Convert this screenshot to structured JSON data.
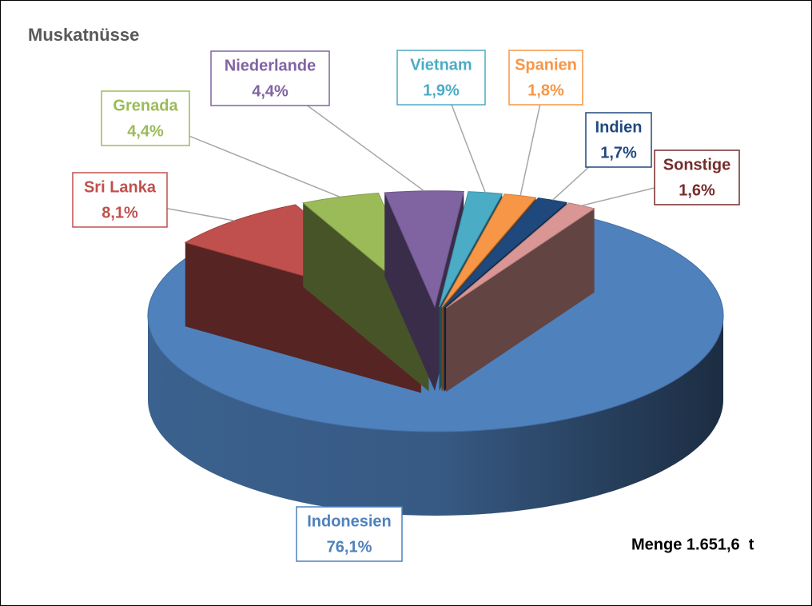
{
  "chart_data": {
    "type": "pie3d",
    "title": "Muskatnüsse",
    "categories": [
      "Indonesien",
      "Sri Lanka",
      "Grenada",
      "Niederlande",
      "Vietnam",
      "Spanien",
      "Indien",
      "Sonstige"
    ],
    "values": [
      76.1,
      8.1,
      4.4,
      4.4,
      1.9,
      1.8,
      1.7,
      1.6
    ],
    "value_labels": [
      "76,1%",
      "8,1%",
      "4,4%",
      "4,4%",
      "1,9%",
      "1,8%",
      "1,7%",
      "1,6%"
    ],
    "colors": [
      "#4f81bd",
      "#c0504d",
      "#9bbb59",
      "#8064a2",
      "#4bacc6",
      "#f79646",
      "#1f497d",
      "#d99694"
    ],
    "label_colors": [
      "#4f81bd",
      "#c0504d",
      "#9bbb59",
      "#8064a2",
      "#4bacc6",
      "#f79646",
      "#1f497d",
      "#772c2a"
    ],
    "annotation": "Menge 1.651,6  t"
  }
}
